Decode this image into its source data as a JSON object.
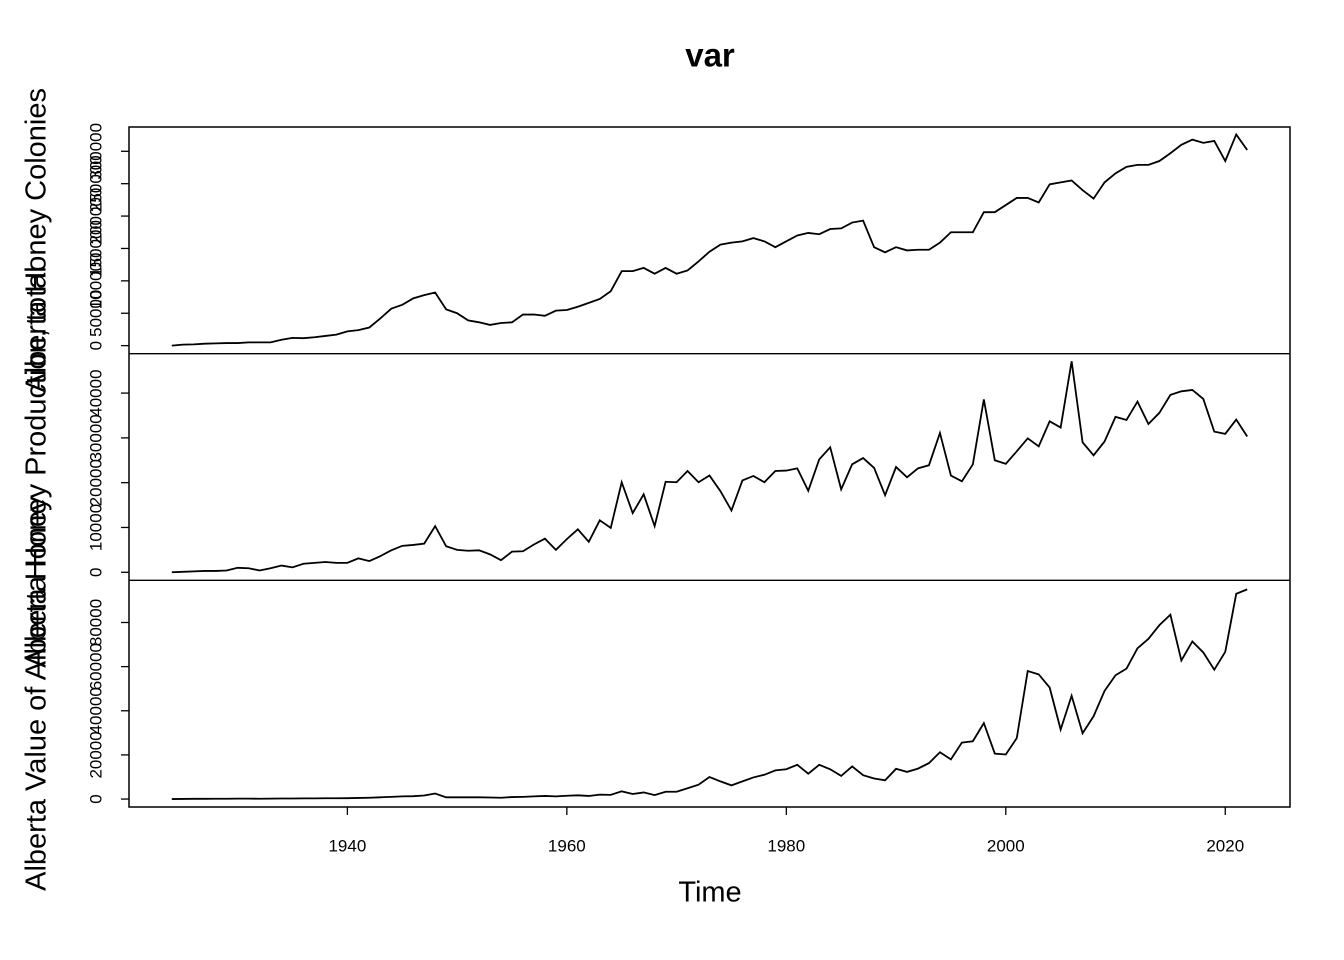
{
  "chart_data": {
    "type": "line",
    "title": "var",
    "x_label": "Time",
    "color": "#000000",
    "x": [
      1924,
      1925,
      1926,
      1927,
      1928,
      1929,
      1930,
      1931,
      1932,
      1933,
      1934,
      1935,
      1936,
      1937,
      1938,
      1939,
      1940,
      1941,
      1942,
      1943,
      1944,
      1945,
      1946,
      1947,
      1948,
      1949,
      1950,
      1951,
      1952,
      1953,
      1954,
      1955,
      1956,
      1957,
      1958,
      1959,
      1960,
      1961,
      1962,
      1963,
      1964,
      1965,
      1966,
      1967,
      1968,
      1969,
      1970,
      1971,
      1972,
      1973,
      1974,
      1975,
      1976,
      1977,
      1978,
      1979,
      1980,
      1981,
      1982,
      1983,
      1984,
      1985,
      1986,
      1987,
      1988,
      1989,
      1990,
      1991,
      1992,
      1993,
      1994,
      1995,
      1996,
      1997,
      1998,
      1999,
      2000,
      2001,
      2002,
      2003,
      2004,
      2005,
      2006,
      2007,
      2008,
      2009,
      2010,
      2011,
      2012,
      2013,
      2014,
      2015,
      2016,
      2017,
      2018,
      2019,
      2020,
      2021,
      2022
    ],
    "xlim": [
      1920.1,
      2025.9
    ],
    "xticks": [
      1940,
      1960,
      1980,
      2000,
      2020
    ],
    "panels": [
      {
        "y_label": "Alberta Honey Colonies",
        "ylim": [
          -12400,
          337500
        ],
        "yticks": [
          0,
          50000,
          100000,
          150000,
          200000,
          250000,
          300000
        ],
        "values": [
          0,
          1500,
          2000,
          3000,
          3500,
          4000,
          4000,
          5000,
          5000,
          5000,
          9000,
          12000,
          11500,
          13000,
          15000,
          17000,
          22000,
          24000,
          28000,
          42000,
          57000,
          63000,
          73000,
          78000,
          82000,
          56000,
          50000,
          39000,
          36000,
          32000,
          35000,
          36000,
          48000,
          48000,
          46000,
          54000,
          55000,
          60000,
          66000,
          72000,
          84000,
          115000,
          115000,
          120000,
          111000,
          120000,
          111000,
          116000,
          130000,
          145000,
          156000,
          159000,
          161000,
          166000,
          161000,
          152000,
          161000,
          170000,
          174000,
          172000,
          180000,
          181000,
          190000,
          193000,
          152000,
          144000,
          152000,
          147000,
          148000,
          148000,
          159000,
          175000,
          175000,
          175000,
          206000,
          206000,
          217000,
          228000,
          228000,
          221000,
          249000,
          252000,
          255000,
          240000,
          227000,
          252000,
          266000,
          276000,
          279000,
          279000,
          285000,
          297000,
          310000,
          318000,
          313000,
          316000,
          285000,
          326000,
          302000
        ]
      },
      {
        "y_label": "Alberta Honey Production, total",
        "ylim": [
          -1800,
          48800
        ],
        "yticks": [
          0,
          10000,
          20000,
          30000,
          40000
        ],
        "values": [
          0,
          100,
          200,
          300,
          300,
          400,
          1000,
          900,
          400,
          900,
          1500,
          1100,
          1900,
          2100,
          2300,
          2100,
          2100,
          3100,
          2500,
          3600,
          4900,
          5900,
          6100,
          6400,
          10300,
          5800,
          5000,
          4800,
          4900,
          4000,
          2700,
          4600,
          4700,
          6200,
          7500,
          5000,
          7400,
          9600,
          6800,
          11600,
          9900,
          20100,
          13200,
          17400,
          10300,
          20200,
          20100,
          22600,
          20100,
          21600,
          18100,
          13800,
          20500,
          21500,
          20100,
          22600,
          22700,
          23200,
          18200,
          25200,
          27900,
          18500,
          24100,
          25500,
          23300,
          17200,
          23500,
          21200,
          23200,
          23900,
          31100,
          21600,
          20300,
          24100,
          38600,
          25000,
          24200,
          27000,
          29900,
          28100,
          33700,
          32300,
          47100,
          29000,
          26100,
          29200,
          34700,
          34000,
          38100,
          33100,
          35600,
          39600,
          40400,
          40700,
          38700,
          31400,
          30900,
          34100,
          30300
        ]
      },
      {
        "y_label": "Alberta Value of Alberta Honey",
        "ylim": [
          -3600,
          99100
        ],
        "yticks": [
          0,
          20000,
          40000,
          60000,
          80000
        ],
        "values": [
          0,
          50,
          100,
          100,
          150,
          150,
          200,
          200,
          150,
          200,
          250,
          250,
          300,
          300,
          350,
          350,
          400,
          500,
          600,
          800,
          1000,
          1200,
          1300,
          1600,
          2500,
          800,
          800,
          800,
          800,
          700,
          600,
          900,
          1000,
          1200,
          1400,
          1200,
          1500,
          1700,
          1400,
          2000,
          1900,
          3500,
          2300,
          3000,
          1800,
          3300,
          3300,
          4900,
          6500,
          10000,
          8000,
          6200,
          8000,
          9800,
          11000,
          13000,
          13500,
          15500,
          11500,
          15500,
          13500,
          10500,
          14800,
          10800,
          9300,
          8500,
          13700,
          12300,
          13800,
          16300,
          21200,
          18000,
          25600,
          26200,
          34400,
          20600,
          20200,
          27600,
          58000,
          56500,
          50500,
          31500,
          46800,
          29800,
          37500,
          49000,
          56100,
          59100,
          68300,
          72600,
          78800,
          83500,
          62800,
          71400,
          66400,
          58600,
          66700,
          93000,
          95000
        ]
      }
    ]
  }
}
